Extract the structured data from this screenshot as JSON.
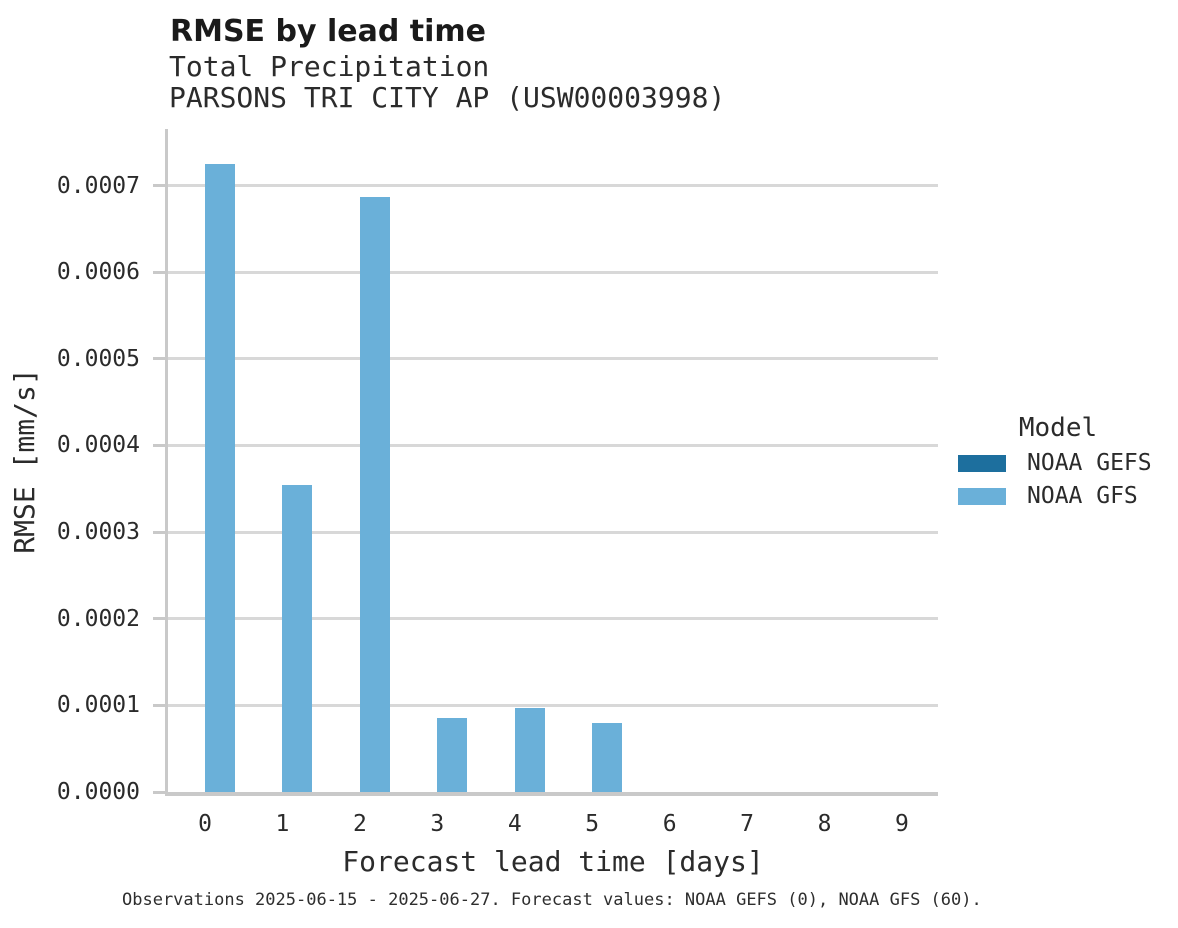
{
  "chart_data": {
    "type": "bar",
    "title": "RMSE by lead time",
    "subtitle": "Total Precipitation",
    "station": "PARSONS TRI CITY AP (USW00003998)",
    "xlabel": "Forecast lead time [days]",
    "ylabel": "RMSE [mm/s]",
    "categories": [
      "0",
      "1",
      "2",
      "3",
      "4",
      "5",
      "6",
      "7",
      "8",
      "9"
    ],
    "series": [
      {
        "name": "NOAA GEFS",
        "color": "#1d6f9e",
        "values": [
          0,
          0,
          0,
          0,
          0,
          0,
          0,
          0,
          0,
          0
        ]
      },
      {
        "name": "NOAA GFS",
        "color": "#6ab0d9",
        "values": [
          0.000725,
          0.000354,
          0.000687,
          8.5e-05,
          9.7e-05,
          8e-05,
          0,
          0,
          0,
          0
        ]
      }
    ],
    "y_ticks": [
      "0.0000",
      "0.0001",
      "0.0002",
      "0.0003",
      "0.0004",
      "0.0005",
      "0.0006",
      "0.0007"
    ],
    "y_tick_step": 0.0001,
    "ylim": [
      0,
      0.000765
    ],
    "grid": "horizontal",
    "legend_title": "Model",
    "legend_position": "right",
    "caption": "Observations 2025-06-15 - 2025-06-27. Forecast values: NOAA GEFS (0), NOAA GFS (60)."
  },
  "colors": {
    "gridline": "#d8d8d8",
    "axis_line": "#c9c9c9",
    "text": "#2b2b2b",
    "background": "#ffffff"
  }
}
